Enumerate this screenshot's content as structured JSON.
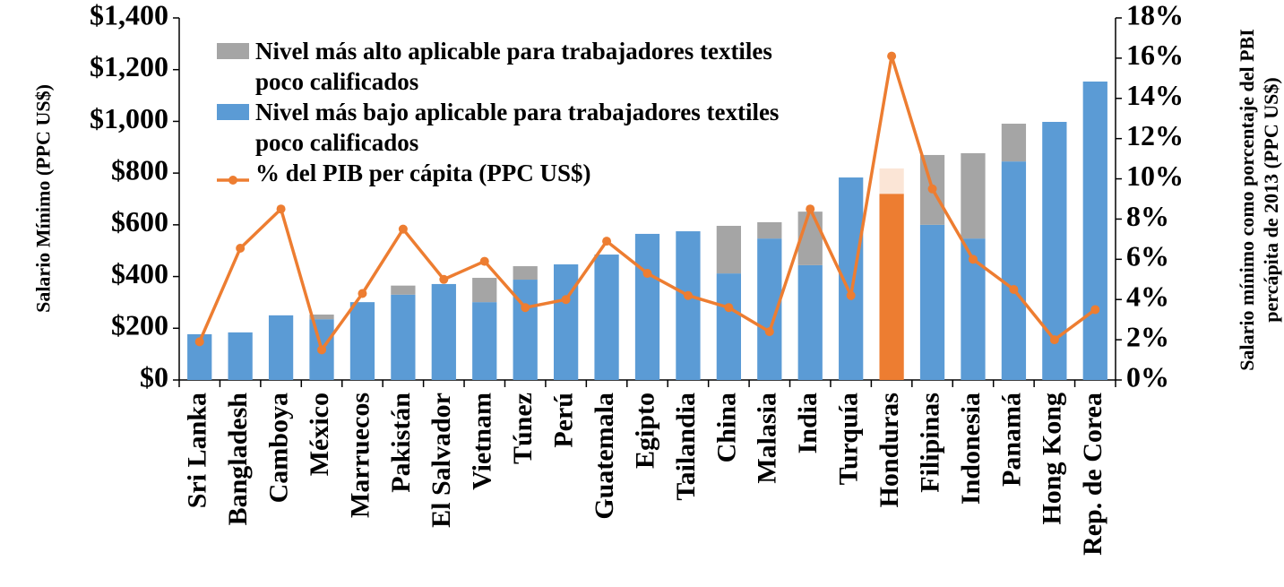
{
  "chart_data": {
    "type": "bar",
    "stacked": true,
    "categories": [
      "Sri Lanka",
      "Bangladesh",
      "Camboya",
      "México",
      "Marruecos",
      "Pakistán",
      "El Salvador",
      "Vietnam",
      "Túnez",
      "Perú",
      "Guatemala",
      "Egipto",
      "Tailandia",
      "China",
      "Malasia",
      "India",
      "Turquía",
      "Honduras",
      "Filipinas",
      "Indonesia",
      "Panamá",
      "Hong Kong",
      "Rep. de Corea"
    ],
    "y_label": "Salario Mínimo (PPC US$)",
    "y2_label": "Salario mínimo como porcentaje del PBI percápita de 2013 (PPC US$)",
    "ylim": [
      0,
      1400
    ],
    "yticks": [
      {
        "value": 0,
        "label": "$0"
      },
      {
        "value": 200,
        "label": "$200"
      },
      {
        "value": 400,
        "label": "$400"
      },
      {
        "value": 600,
        "label": "$600"
      },
      {
        "value": 800,
        "label": "$800"
      },
      {
        "value": 1000,
        "label": "$1,000"
      },
      {
        "value": 1200,
        "label": "$1,200"
      },
      {
        "value": 1400,
        "label": "$1,400"
      }
    ],
    "y2lim": [
      0,
      18
    ],
    "y2ticks": [
      {
        "value": 0,
        "label": "0%"
      },
      {
        "value": 2,
        "label": "2%"
      },
      {
        "value": 4,
        "label": "4%"
      },
      {
        "value": 6,
        "label": "6%"
      },
      {
        "value": 8,
        "label": "8%"
      },
      {
        "value": 10,
        "label": "10%"
      },
      {
        "value": 12,
        "label": "12%"
      },
      {
        "value": 14,
        "label": "14%"
      },
      {
        "value": 16,
        "label": "16%"
      },
      {
        "value": 18,
        "label": "18%"
      }
    ],
    "grid": false,
    "legend": "top-left",
    "highlight_category": "Honduras",
    "series": [
      {
        "name": "Nivel más bajo aplicable para trabajadores textiles poco calificados",
        "color": "#5b9bd5",
        "highlight_color": "#ed7d31",
        "values": [
          177,
          184,
          250,
          235,
          301,
          330,
          371,
          301,
          388,
          447,
          485,
          565,
          575,
          412,
          547,
          444,
          783,
          720,
          600,
          547,
          845,
          998,
          1154
        ]
      },
      {
        "name": "Nivel más alto aplicable para trabajadores textiles poco calificados",
        "color": "#a5a5a5",
        "highlight_color": "#fbe5d6",
        "values": [
          0,
          0,
          0,
          18,
          0,
          35,
          0,
          94,
          52,
          0,
          0,
          0,
          0,
          184,
          63,
          207,
          0,
          98,
          270,
          330,
          146,
          0,
          0
        ]
      },
      {
        "name": "% del PIB per cápita (PPC US$)",
        "type": "line",
        "axis": "y2",
        "color": "#ed7d31",
        "values": [
          1.9,
          6.55,
          8.5,
          1.5,
          4.3,
          7.5,
          5.0,
          5.9,
          3.6,
          4.0,
          6.9,
          5.3,
          4.2,
          3.6,
          2.4,
          8.5,
          4.2,
          16.1,
          9.5,
          6.0,
          4.5,
          2.0,
          3.5
        ]
      }
    ]
  }
}
